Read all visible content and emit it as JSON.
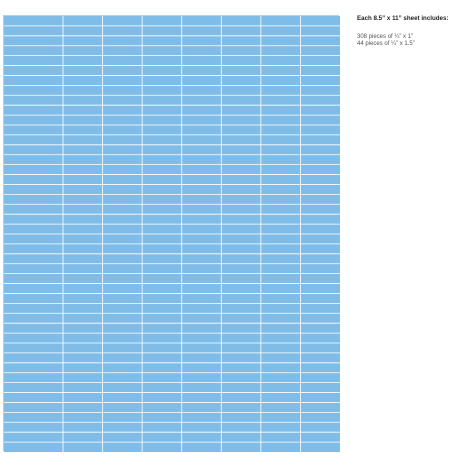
{
  "colors": {
    "label_fill": "#7fbde8",
    "cut_line": "#ffffff",
    "page_background": "#ffffff"
  },
  "sheet_layout": {
    "columns": 8,
    "rows": 44
  },
  "info": {
    "heading": "Each 8.5” x 11” sheet includes:",
    "pieces": [
      "308 pieces of ¼” x 1”",
      "44 pieces of ¼” x 1.5”"
    ]
  }
}
